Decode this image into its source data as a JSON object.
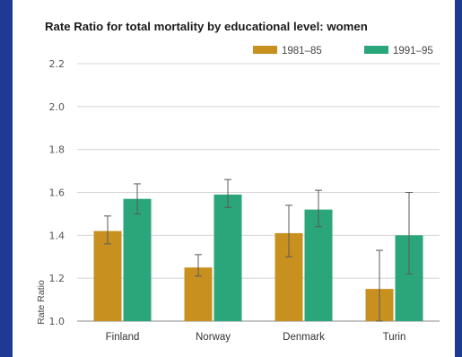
{
  "chart_data": {
    "type": "bar",
    "title": "Rate Ratio for total mortality by educational level: women",
    "xlabel": "",
    "ylabel": "Rate Ratio",
    "ylim": [
      1.0,
      2.2
    ],
    "yticks": [
      "1.0",
      "1.2",
      "1.4",
      "1.6",
      "1.8",
      "2.0",
      "2.2"
    ],
    "grid": "horizontal",
    "legend_position": "top-right",
    "categories": [
      "Finland",
      "Norway",
      "Denmark",
      "Turin"
    ],
    "series": [
      {
        "name": "1981–85",
        "color": "#c8901e",
        "values": [
          1.42,
          1.25,
          1.41,
          1.15
        ],
        "error_low": [
          1.36,
          1.21,
          1.3,
          1.0
        ],
        "error_high": [
          1.49,
          1.31,
          1.54,
          1.33
        ]
      },
      {
        "name": "1991–95",
        "color": "#2aa67a",
        "values": [
          1.57,
          1.59,
          1.52,
          1.4
        ],
        "error_low": [
          1.5,
          1.53,
          1.44,
          1.22
        ],
        "error_high": [
          1.64,
          1.66,
          1.61,
          1.6
        ]
      }
    ]
  }
}
